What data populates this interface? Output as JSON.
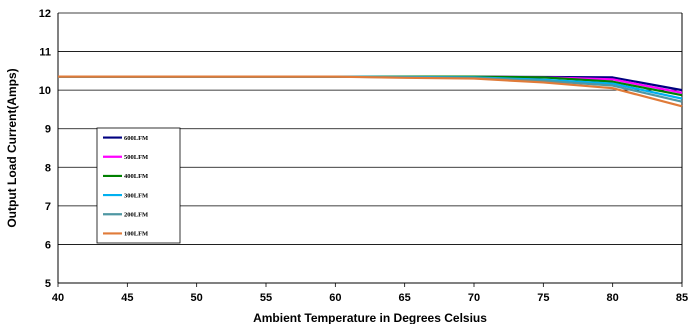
{
  "chart_data": {
    "type": "line",
    "title": "",
    "xlabel": "Ambient Temperature in Degrees Celsius",
    "ylabel": "Output  Load Current(Amps)",
    "xlim": [
      40,
      85
    ],
    "ylim": [
      5,
      12
    ],
    "xticks": [
      40,
      45,
      50,
      55,
      60,
      65,
      70,
      75,
      80,
      85
    ],
    "yticks": [
      5,
      6,
      7,
      8,
      9,
      10,
      11,
      12
    ],
    "grid": "horizontal",
    "legend_position": "left",
    "x": [
      40,
      45,
      50,
      55,
      60,
      65,
      70,
      75,
      80,
      85
    ],
    "series": [
      {
        "name": "600LFM",
        "color": "#000080",
        "values": [
          10.35,
          10.35,
          10.35,
          10.35,
          10.35,
          10.35,
          10.35,
          10.34,
          10.33,
          10.0
        ]
      },
      {
        "name": "500LFM",
        "color": "#ff00ff",
        "values": [
          10.35,
          10.35,
          10.35,
          10.35,
          10.35,
          10.35,
          10.35,
          10.33,
          10.28,
          9.93
        ]
      },
      {
        "name": "400LFM",
        "color": "#008000",
        "values": [
          10.35,
          10.35,
          10.35,
          10.35,
          10.35,
          10.35,
          10.35,
          10.33,
          10.22,
          9.87
        ]
      },
      {
        "name": "300LFM",
        "color": "#00b0f0",
        "values": [
          10.35,
          10.35,
          10.35,
          10.35,
          10.35,
          10.34,
          10.33,
          10.27,
          10.17,
          9.78
        ]
      },
      {
        "name": "200LFM",
        "color": "#4f97a3",
        "values": [
          10.35,
          10.35,
          10.35,
          10.35,
          10.35,
          10.33,
          10.32,
          10.24,
          10.12,
          9.7
        ]
      },
      {
        "name": "100LFM",
        "color": "#e07b39",
        "values": [
          10.35,
          10.35,
          10.35,
          10.35,
          10.35,
          10.32,
          10.3,
          10.2,
          10.05,
          9.58
        ]
      }
    ]
  }
}
